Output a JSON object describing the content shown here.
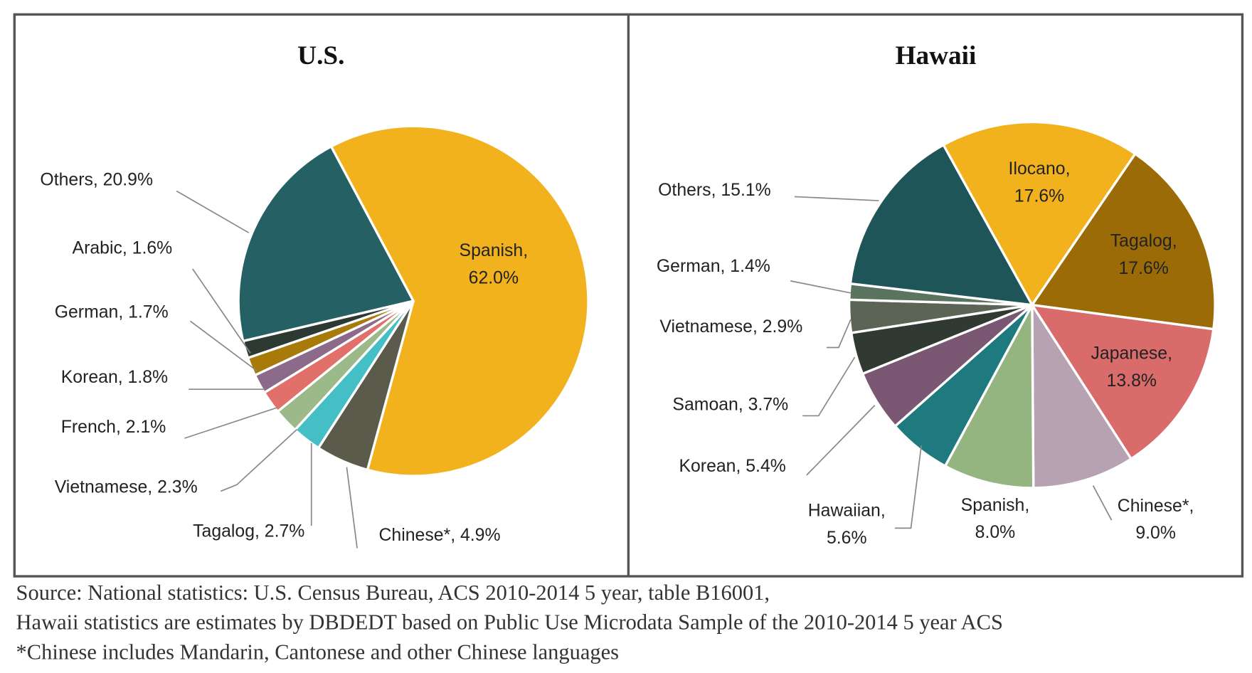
{
  "chart_data": [
    {
      "type": "pie",
      "title": "U.S.",
      "labels": [
        "Spanish, 62.0%",
        "Chinese*, 4.9%",
        "Tagalog, 2.7%",
        "Vietnamese, 2.3%",
        "French, 2.1%",
        "Korean, 1.8%",
        "German, 1.7%",
        "Arabic, 1.6%",
        "Others, 20.9%"
      ],
      "values": [
        62.0,
        4.9,
        2.7,
        2.3,
        2.1,
        1.8,
        1.7,
        1.6,
        20.9
      ],
      "colors": [
        "#f2b21e",
        "#5a5b4b",
        "#45bfc6",
        "#9cb98a",
        "#e1706a",
        "#8c6b8a",
        "#a87a0a",
        "#2d3a33",
        "#256064"
      ]
    },
    {
      "type": "pie",
      "title": "Hawaii",
      "labels": [
        "Ilocano, 17.6%",
        "Tagalog, 17.6%",
        "Japanese, 13.8%",
        "Chinese*, 9.0%",
        "Spanish, 8.0%",
        "Hawaiian, 5.6%",
        "Korean, 5.4%",
        "Samoan, 3.7%",
        "Vietnamese, 2.9%",
        "German, 1.4%",
        "Others, 15.1%"
      ],
      "values": [
        17.6,
        17.6,
        13.8,
        9.0,
        8.0,
        5.6,
        5.4,
        3.7,
        2.9,
        1.4,
        15.1
      ],
      "colors": [
        "#f2b21e",
        "#9a6b06",
        "#d96b6b",
        "#b7a2b2",
        "#94b480",
        "#1f7a80",
        "#7a5773",
        "#303a32",
        "#5c6455",
        "#5a7460",
        "#1e5558"
      ]
    }
  ],
  "notes": [
    "Source: National statistics: U.S. Census Bureau, ACS 2010-2014 5 year, table B16001,",
    "Hawaii statistics are estimates by DBDEDT based on Public Use Microdata Sample of the 2010-2014 5 year ACS",
    "*Chinese includes Mandarin, Cantonese and other Chinese languages"
  ]
}
